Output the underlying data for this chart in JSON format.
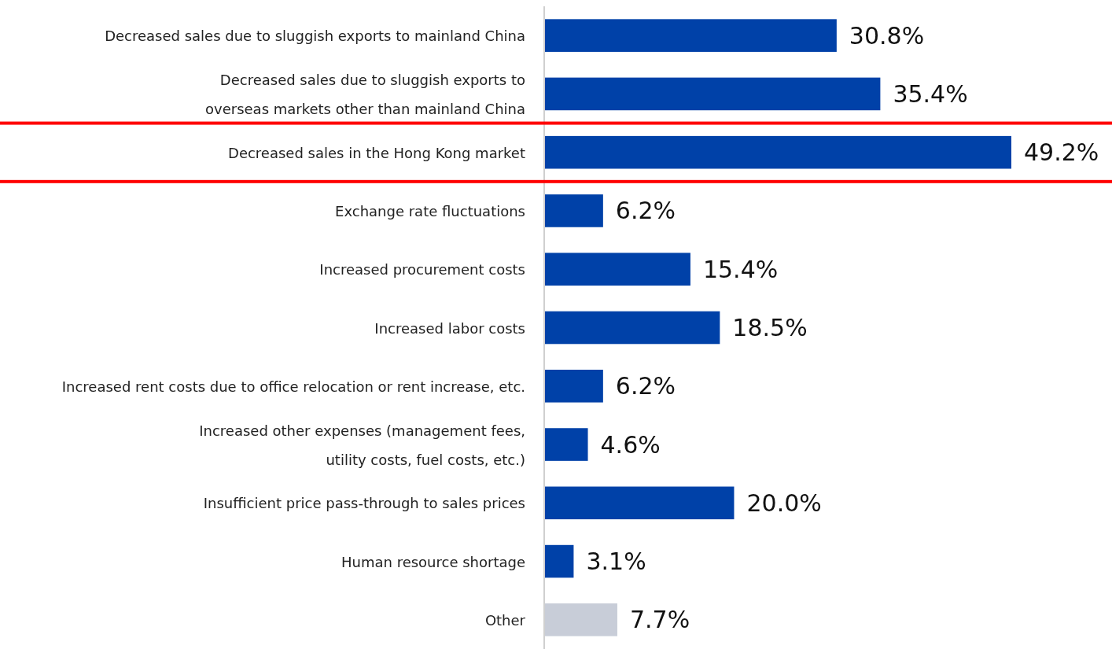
{
  "chart_data": {
    "type": "bar",
    "orientation": "horizontal",
    "value_labels": [
      "30.8%",
      "35.4%",
      "49.2%",
      "6.2%",
      "15.4%",
      "18.5%",
      "6.2%",
      "4.6%",
      "20.0%",
      "3.1%",
      "7.7%"
    ],
    "categories": [
      "Decreased sales due to sluggish exports to mainland China",
      "Decreased sales due to sluggish exports to\noverseas markets other than mainland China",
      "Decreased sales in the Hong Kong market",
      "Exchange rate fluctuations",
      "Increased procurement costs",
      "Increased labor costs",
      "Increased rent costs due to office relocation or rent increase, etc.",
      "Increased other expenses (management fees,\nutility costs, fuel costs, etc.)",
      "Insufficient price pass-through to sales prices",
      "Human resource shortage",
      "Other"
    ],
    "values": [
      30.8,
      35.4,
      49.2,
      6.2,
      15.4,
      18.5,
      6.2,
      4.6,
      20.0,
      3.1,
      7.7
    ],
    "colors": [
      "#0041a8",
      "#0041a8",
      "#0041a8",
      "#0041a8",
      "#0041a8",
      "#0041a8",
      "#0041a8",
      "#0041a8",
      "#0041a8",
      "#0041a8",
      "#c8cdd8"
    ]
  }
}
